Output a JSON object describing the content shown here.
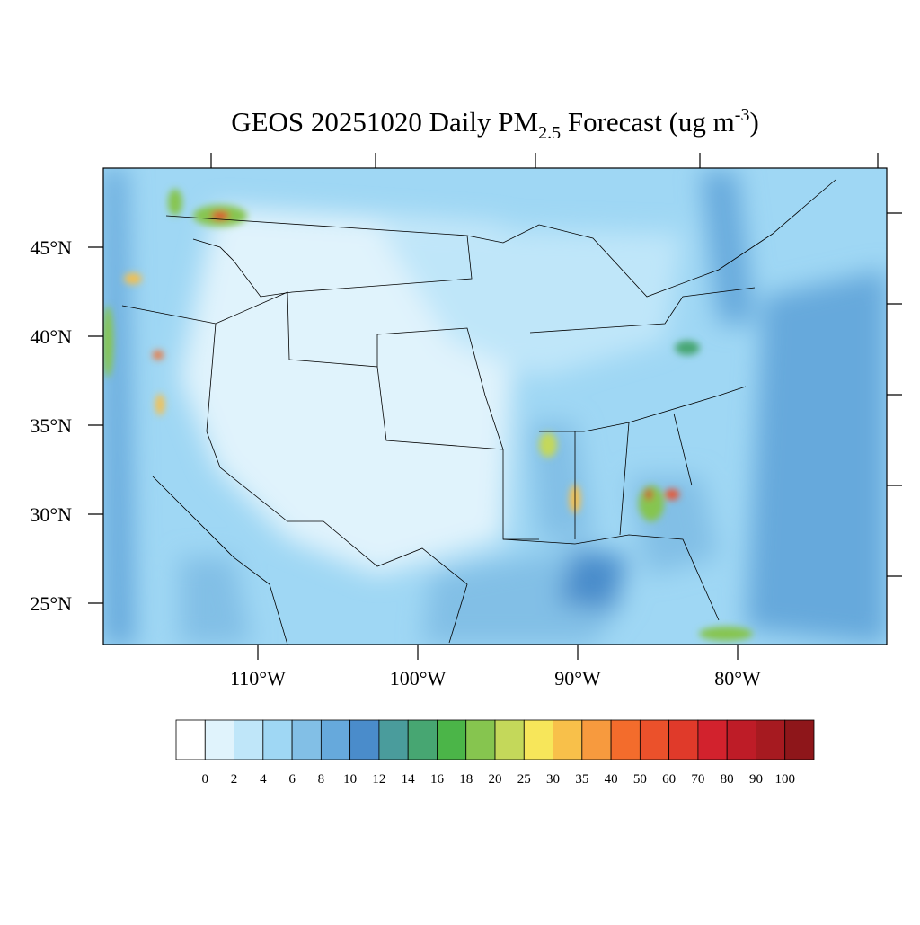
{
  "title": {
    "main": "GEOS 20251020 Daily PM",
    "subscript": "2.5",
    "rest": " Forecast (ug m",
    "superscript": "-3",
    "end": ")"
  },
  "lat_labels": [
    "45°N",
    "40°N",
    "35°N",
    "30°N",
    "25°N"
  ],
  "lon_labels": [
    "110°W",
    "100°W",
    "90°W",
    "80°W"
  ],
  "colorbar": {
    "labels": [
      "0",
      "2",
      "4",
      "6",
      "8",
      "10",
      "12",
      "14",
      "16",
      "18",
      "20",
      "25",
      "30",
      "35",
      "40",
      "50",
      "60",
      "70",
      "80",
      "90",
      "100"
    ],
    "colors": [
      "#ffffff",
      "#e0f3fc",
      "#bfe6f9",
      "#9fd7f4",
      "#82bfe6",
      "#66a9dc",
      "#4a8ccb",
      "#4a9c9c",
      "#47a672",
      "#4bb548",
      "#86c54f",
      "#c4d85a",
      "#f7e65a",
      "#f8c04a",
      "#f79a3e",
      "#f36c2c",
      "#eb512b",
      "#e03a2a",
      "#d2222d",
      "#be1c27",
      "#a61a20",
      "#8e161a"
    ]
  }
}
